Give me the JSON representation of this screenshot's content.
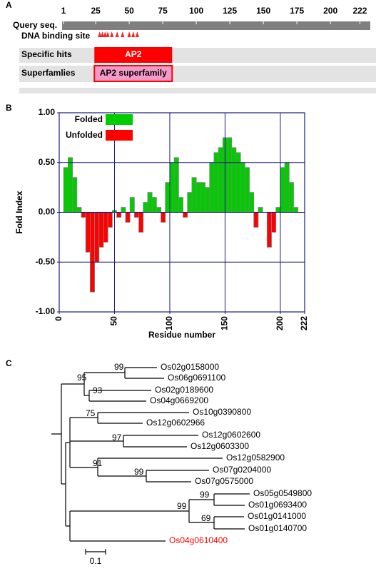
{
  "domain_panel": {
    "panel_label": "A",
    "query_label": "Query seq.",
    "scale_ticks": [
      1,
      25,
      50,
      75,
      100,
      125,
      150,
      175,
      200,
      222
    ],
    "dna_binding_label": "DNA binding site",
    "dna_binding_sites": [
      28,
      30,
      32,
      34,
      37,
      41,
      45,
      50,
      53,
      56
    ],
    "rows": [
      {
        "label": "Specific hits",
        "name": "AP2",
        "start": 24,
        "end": 82,
        "color": "#ff0000",
        "text_color": "#ffffff"
      },
      {
        "label": "Superfamlies",
        "name": "AP2 superfamily",
        "start": 24,
        "end": 82,
        "color": "#f59ac8",
        "text_color": "#000000"
      }
    ]
  },
  "chart_data": {
    "type": "bar",
    "panel_label": "B",
    "x_label": "Residue number",
    "y_label": "Fold Index",
    "legend": [
      {
        "name": "Folded",
        "color": "#00cc00"
      },
      {
        "name": "Unfolded",
        "color": "#ff0000"
      }
    ],
    "x": [
      2,
      6,
      10,
      14,
      18,
      22,
      26,
      30,
      34,
      38,
      42,
      46,
      50,
      54,
      58,
      62,
      66,
      70,
      74,
      78,
      82,
      86,
      90,
      94,
      98,
      102,
      106,
      110,
      114,
      118,
      122,
      126,
      130,
      134,
      138,
      142,
      146,
      150,
      154,
      158,
      162,
      166,
      170,
      174,
      178,
      182,
      186,
      190,
      194,
      198,
      202,
      206,
      210,
      214
    ],
    "values": [
      0,
      0.45,
      0.55,
      0.35,
      0.05,
      -0.05,
      -0.4,
      -0.8,
      -0.5,
      -0.35,
      -0.3,
      -0.15,
      0.02,
      -0.05,
      0.05,
      -0.1,
      0.15,
      -0.05,
      -0.2,
      0.1,
      0.2,
      0.15,
      0.05,
      -0.1,
      0.3,
      0.5,
      0.55,
      0.15,
      -0.05,
      0.2,
      0.35,
      0.3,
      0.3,
      0.25,
      0.5,
      0.6,
      0.65,
      0.75,
      0.75,
      0.65,
      0.6,
      0.5,
      0.45,
      0.2,
      -0.15,
      0.05,
      0,
      -0.35,
      -0.2,
      0.05,
      0.45,
      0.5,
      0.3,
      0.05
    ],
    "xlim": [
      0,
      222
    ],
    "xticks": [
      0,
      50,
      100,
      150,
      200,
      222
    ],
    "ylim": [
      -1,
      1
    ],
    "yticks": [
      {
        "value": -1,
        "label": "-1.00"
      },
      {
        "value": -0.5,
        "label": "-0.50"
      },
      {
        "value": 0,
        "label": "0.00"
      },
      {
        "value": 0.5,
        "label": "0.50"
      },
      {
        "value": 1,
        "label": "1.00"
      }
    ],
    "grid": true
  },
  "tree": {
    "panel_label": "C",
    "leaves": [
      {
        "name": "Os02g0158000",
        "color": "#000000"
      },
      {
        "name": "Os06g0691100",
        "color": "#000000"
      },
      {
        "name": "Os02g0189600",
        "color": "#000000"
      },
      {
        "name": "Os04g0669200",
        "color": "#000000"
      },
      {
        "name": "Os10g0390800",
        "color": "#000000"
      },
      {
        "name": "Os12g0602966",
        "color": "#000000"
      },
      {
        "name": "Os12g0602600",
        "color": "#000000"
      },
      {
        "name": "Os12g0603300",
        "color": "#000000"
      },
      {
        "name": "Os12g0582900",
        "color": "#000000"
      },
      {
        "name": "Os07g0204000",
        "color": "#000000"
      },
      {
        "name": "Os07g0575000",
        "color": "#000000"
      },
      {
        "name": "Os05g0549800",
        "color": "#000000"
      },
      {
        "name": "Os01g0693400",
        "color": "#000000"
      },
      {
        "name": "Os01g0141000",
        "color": "#000000"
      },
      {
        "name": "Os01g0140700",
        "color": "#000000"
      },
      {
        "name": "Os04g0610400",
        "color": "#ff0000"
      }
    ],
    "bootstraps": [
      99,
      95,
      93,
      75,
      97,
      91,
      99,
      99,
      99,
      69
    ],
    "scale_label": "0.1"
  }
}
